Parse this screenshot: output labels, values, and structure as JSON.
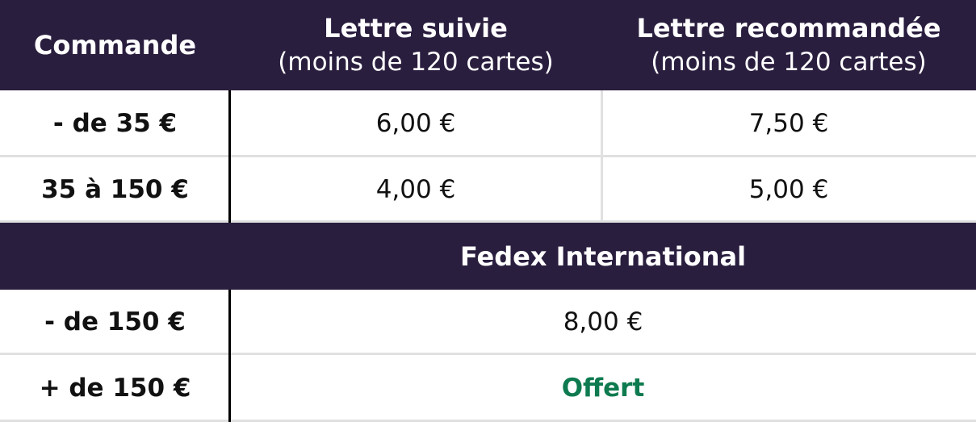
{
  "header": {
    "col1": "Commande",
    "col2_title": "Lettre suivie",
    "col2_sub": "(moins de 120 cartes)",
    "col3_title": "Lettre recommandée",
    "col3_sub": "(moins de 120 cartes)"
  },
  "france_rows": [
    {
      "order": "- de 35 €",
      "suivie": "6,00 €",
      "recommandee": "7,50 €"
    },
    {
      "order": "35 à 150 €",
      "suivie": "4,00 €",
      "recommandee": "5,00 €"
    }
  ],
  "international": {
    "title": "Fedex International",
    "rows": [
      {
        "order": "- de 150 €",
        "price": "8,00 €"
      },
      {
        "order": "+ de 150 €",
        "price": "Offert"
      }
    ]
  },
  "colors": {
    "header_bg": "#2a1e3f",
    "offer_green": "#0e7a4f"
  }
}
